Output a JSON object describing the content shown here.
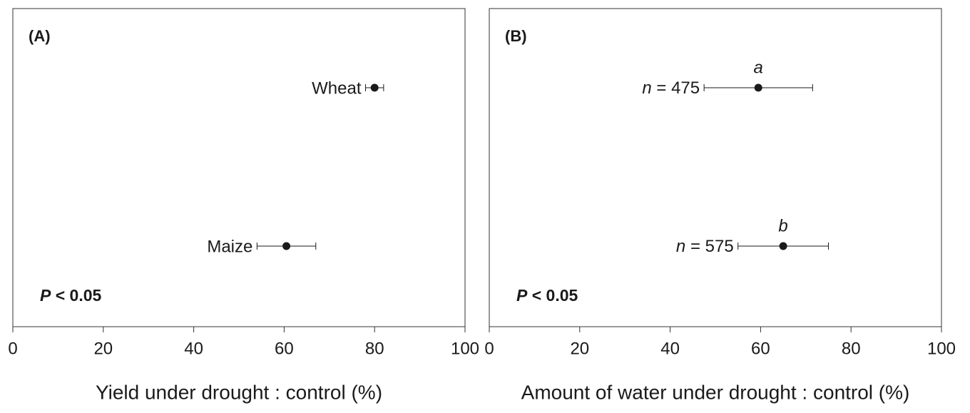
{
  "chart_data": [
    {
      "type": "errorbar",
      "panel_label": "(A)",
      "annotation": "P < 0.05",
      "xlabel": "Yield under drought : control (%)",
      "categories": [
        "Wheat",
        "Maize"
      ],
      "values": [
        80,
        60.5
      ],
      "errors": [
        2,
        6.5
      ],
      "xlim": [
        0,
        100
      ],
      "xticks": [
        0,
        20,
        40,
        60,
        80,
        100
      ],
      "color": "#1a1a1a"
    },
    {
      "type": "errorbar",
      "panel_label": "(B)",
      "annotation": "P < 0.05",
      "xlabel": "Amount of water under drought : control (%)",
      "categories": [
        "n = 475",
        "n = 575"
      ],
      "value_letters": [
        "a",
        "b"
      ],
      "values": [
        59.5,
        65
      ],
      "errors": [
        12,
        10
      ],
      "xlim": [
        0,
        100
      ],
      "xticks": [
        0,
        20,
        40,
        60,
        80,
        100
      ],
      "color": "#1a1a1a"
    }
  ]
}
